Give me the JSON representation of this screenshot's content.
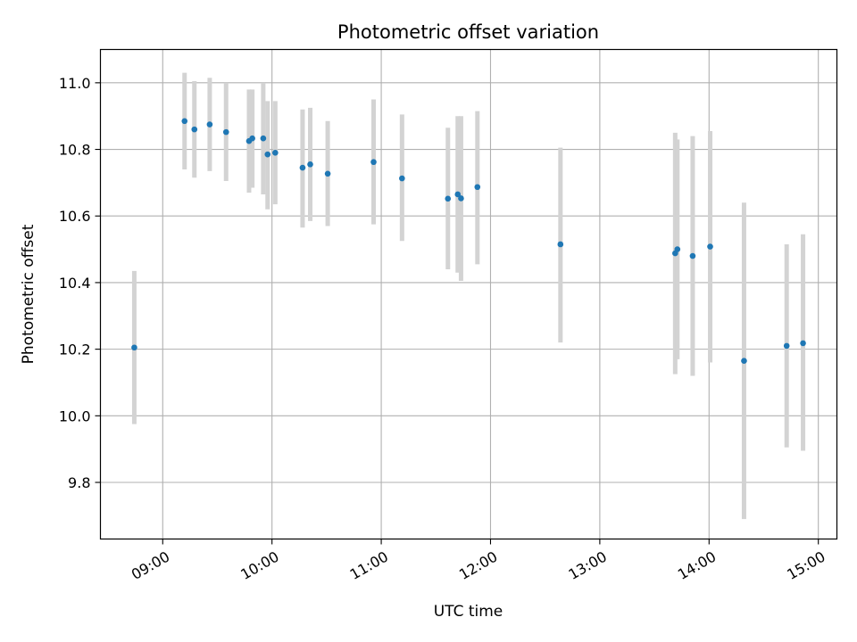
{
  "chart_data": {
    "type": "scatter",
    "title": "Photometric offset variation",
    "xlabel": "UTC time",
    "ylabel": "Photometric offset",
    "x_unit": "hours UTC",
    "xlim": [
      8.43,
      15.17
    ],
    "ylim": [
      9.63,
      11.1
    ],
    "grid": true,
    "legend": "none",
    "x_ticks": [
      {
        "value": 9,
        "label": "09:00"
      },
      {
        "value": 10,
        "label": "10:00"
      },
      {
        "value": 11,
        "label": "11:00"
      },
      {
        "value": 12,
        "label": "12:00"
      },
      {
        "value": 13,
        "label": "13:00"
      },
      {
        "value": 14,
        "label": "14:00"
      },
      {
        "value": 15,
        "label": "15:00"
      }
    ],
    "y_ticks": [
      {
        "value": 9.8,
        "label": "9.8"
      },
      {
        "value": 10.0,
        "label": "10.0"
      },
      {
        "value": 10.2,
        "label": "10.2"
      },
      {
        "value": 10.4,
        "label": "10.4"
      },
      {
        "value": 10.6,
        "label": "10.6"
      },
      {
        "value": 10.8,
        "label": "10.8"
      },
      {
        "value": 11.0,
        "label": "11.0"
      }
    ],
    "point_color": "#1f77b4",
    "errorbar_color": "#d3d3d3",
    "series": [
      {
        "name": "offset",
        "points": [
          {
            "x": 8.74,
            "y": 10.205,
            "lo": 9.975,
            "hi": 10.435
          },
          {
            "x": 9.2,
            "y": 10.885,
            "lo": 10.74,
            "hi": 11.03
          },
          {
            "x": 9.29,
            "y": 10.86,
            "lo": 10.715,
            "hi": 11.005
          },
          {
            "x": 9.43,
            "y": 10.875,
            "lo": 10.735,
            "hi": 11.015
          },
          {
            "x": 9.58,
            "y": 10.852,
            "lo": 10.705,
            "hi": 11.0
          },
          {
            "x": 9.79,
            "y": 10.825,
            "lo": 10.67,
            "hi": 10.98
          },
          {
            "x": 9.82,
            "y": 10.833,
            "lo": 10.685,
            "hi": 10.98
          },
          {
            "x": 9.92,
            "y": 10.833,
            "lo": 10.665,
            "hi": 11.0
          },
          {
            "x": 9.96,
            "y": 10.785,
            "lo": 10.62,
            "hi": 10.945
          },
          {
            "x": 10.03,
            "y": 10.79,
            "lo": 10.635,
            "hi": 10.945
          },
          {
            "x": 10.28,
            "y": 10.745,
            "lo": 10.565,
            "hi": 10.92
          },
          {
            "x": 10.35,
            "y": 10.755,
            "lo": 10.585,
            "hi": 10.925
          },
          {
            "x": 10.51,
            "y": 10.727,
            "lo": 10.57,
            "hi": 10.885
          },
          {
            "x": 10.93,
            "y": 10.762,
            "lo": 10.575,
            "hi": 10.95
          },
          {
            "x": 11.19,
            "y": 10.713,
            "lo": 10.525,
            "hi": 10.905
          },
          {
            "x": 11.61,
            "y": 10.652,
            "lo": 10.44,
            "hi": 10.865
          },
          {
            "x": 11.7,
            "y": 10.665,
            "lo": 10.43,
            "hi": 10.9
          },
          {
            "x": 11.73,
            "y": 10.653,
            "lo": 10.405,
            "hi": 10.9
          },
          {
            "x": 11.88,
            "y": 10.687,
            "lo": 10.455,
            "hi": 10.915
          },
          {
            "x": 12.64,
            "y": 10.515,
            "lo": 10.22,
            "hi": 10.805
          },
          {
            "x": 13.69,
            "y": 10.488,
            "lo": 10.125,
            "hi": 10.85
          },
          {
            "x": 13.71,
            "y": 10.5,
            "lo": 10.17,
            "hi": 10.83
          },
          {
            "x": 13.85,
            "y": 10.48,
            "lo": 10.12,
            "hi": 10.84
          },
          {
            "x": 14.01,
            "y": 10.508,
            "lo": 10.16,
            "hi": 10.855
          },
          {
            "x": 14.32,
            "y": 10.165,
            "lo": 9.69,
            "hi": 10.64
          },
          {
            "x": 14.71,
            "y": 10.21,
            "lo": 9.905,
            "hi": 10.515
          },
          {
            "x": 14.86,
            "y": 10.218,
            "lo": 9.895,
            "hi": 10.545
          }
        ]
      }
    ]
  }
}
